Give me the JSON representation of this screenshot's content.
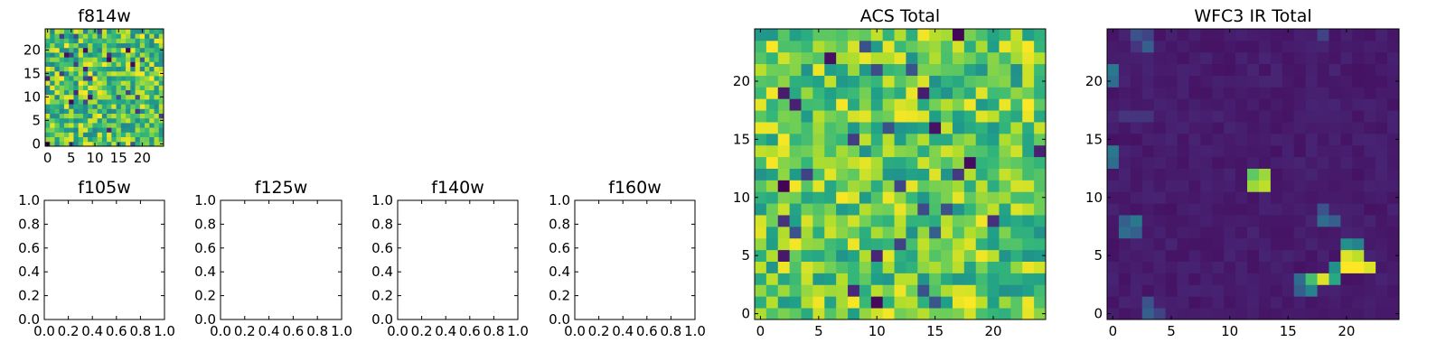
{
  "chart_data": [
    {
      "type": "heatmap",
      "title": "f814w",
      "grid_size": 25,
      "colormap": "viridis",
      "xticks": [
        "0",
        "5",
        "10",
        "15",
        "20"
      ],
      "yticks": [
        "0",
        "5",
        "10",
        "15",
        "20"
      ],
      "xlim": [
        -0.5,
        24.5
      ],
      "ylim": [
        -0.5,
        24.5
      ],
      "value_range": [
        0,
        1
      ],
      "values_note": "random noise field"
    },
    {
      "type": "empty",
      "title": "f105w",
      "xticks": [
        "0.0",
        "0.2",
        "0.4",
        "0.6",
        "0.8",
        "1.0"
      ],
      "yticks": [
        "0.0",
        "0.2",
        "0.4",
        "0.6",
        "0.8",
        "1.0"
      ],
      "xlim": [
        0,
        1
      ],
      "ylim": [
        0,
        1
      ]
    },
    {
      "type": "empty",
      "title": "f125w",
      "xticks": [
        "0.0",
        "0.2",
        "0.4",
        "0.6",
        "0.8",
        "1.0"
      ],
      "yticks": [
        "0.0",
        "0.2",
        "0.4",
        "0.6",
        "0.8",
        "1.0"
      ],
      "xlim": [
        0,
        1
      ],
      "ylim": [
        0,
        1
      ]
    },
    {
      "type": "empty",
      "title": "f140w",
      "xticks": [
        "0.0",
        "0.2",
        "0.4",
        "0.6",
        "0.8",
        "1.0"
      ],
      "yticks": [
        "0.0",
        "0.2",
        "0.4",
        "0.6",
        "0.8",
        "1.0"
      ],
      "xlim": [
        0,
        1
      ],
      "ylim": [
        0,
        1
      ]
    },
    {
      "type": "empty",
      "title": "f160w",
      "xticks": [
        "0.0",
        "0.2",
        "0.4",
        "0.6",
        "0.8",
        "1.0"
      ],
      "yticks": [
        "0.0",
        "0.2",
        "0.4",
        "0.6",
        "0.8",
        "1.0"
      ],
      "xlim": [
        0,
        1
      ],
      "ylim": [
        0,
        1
      ]
    },
    {
      "type": "heatmap",
      "title": "ACS Total",
      "grid_size": 25,
      "colormap": "viridis",
      "xticks": [
        "0",
        "5",
        "10",
        "15",
        "20"
      ],
      "yticks": [
        "0",
        "5",
        "10",
        "15",
        "20"
      ],
      "xlim": [
        -0.5,
        24.5
      ],
      "ylim": [
        -0.5,
        24.5
      ],
      "value_range": [
        0,
        1
      ],
      "values_note": "noise field, mostly green-yellow with scattered dark pixels"
    },
    {
      "type": "heatmap",
      "title": "WFC3 IR Total",
      "grid_size": 25,
      "colormap": "viridis",
      "xticks": [
        "0",
        "5",
        "10",
        "15",
        "20"
      ],
      "yticks": [
        "0",
        "5",
        "10",
        "15",
        "20"
      ],
      "xlim": [
        -0.5,
        24.5
      ],
      "ylim": [
        -0.5,
        24.5
      ],
      "value_range": [
        0,
        1
      ],
      "background_level": 0.05,
      "features": [
        {
          "x": 12,
          "y": 11,
          "value": 0.85
        },
        {
          "x": 13,
          "y": 11,
          "value": 0.9
        },
        {
          "x": 12,
          "y": 12,
          "value": 0.75
        },
        {
          "x": 13,
          "y": 12,
          "value": 0.85
        },
        {
          "x": 20,
          "y": 4,
          "value": 1.0
        },
        {
          "x": 21,
          "y": 4,
          "value": 1.0
        },
        {
          "x": 22,
          "y": 4,
          "value": 0.95
        },
        {
          "x": 20,
          "y": 5,
          "value": 0.95
        },
        {
          "x": 21,
          "y": 5,
          "value": 0.9
        },
        {
          "x": 20,
          "y": 6,
          "value": 0.5
        },
        {
          "x": 21,
          "y": 6,
          "value": 0.45
        },
        {
          "x": 18,
          "y": 3,
          "value": 0.95
        },
        {
          "x": 19,
          "y": 3,
          "value": 0.6
        },
        {
          "x": 17,
          "y": 3,
          "value": 0.7
        },
        {
          "x": 19,
          "y": 4,
          "value": 0.5
        },
        {
          "x": 17,
          "y": 2,
          "value": 0.45
        },
        {
          "x": 16,
          "y": 2,
          "value": 0.3
        },
        {
          "x": 16,
          "y": 3,
          "value": 0.35
        },
        {
          "x": 18,
          "y": 8,
          "value": 0.35
        },
        {
          "x": 19,
          "y": 8,
          "value": 0.3
        },
        {
          "x": 18,
          "y": 9,
          "value": 0.25
        },
        {
          "x": 2,
          "y": 7,
          "value": 0.3
        },
        {
          "x": 1,
          "y": 7,
          "value": 0.35
        },
        {
          "x": 1,
          "y": 8,
          "value": 0.3
        },
        {
          "x": 2,
          "y": 8,
          "value": 0.4
        },
        {
          "x": 0,
          "y": 13,
          "value": 0.35
        },
        {
          "x": 0,
          "y": 14,
          "value": 0.4
        },
        {
          "x": 0,
          "y": 20,
          "value": 0.35
        },
        {
          "x": 0,
          "y": 21,
          "value": 0.4
        },
        {
          "x": 2,
          "y": 24,
          "value": 0.25
        },
        {
          "x": 3,
          "y": 23,
          "value": 0.3
        },
        {
          "x": 3,
          "y": 24,
          "value": 0.2
        },
        {
          "x": 2,
          "y": 23,
          "value": 0.15
        },
        {
          "x": 3,
          "y": 0,
          "value": 0.3
        },
        {
          "x": 3,
          "y": 1,
          "value": 0.25
        },
        {
          "x": 4,
          "y": 0,
          "value": 0.2
        },
        {
          "x": 18,
          "y": 24,
          "value": 0.2
        },
        {
          "x": 1,
          "y": 17,
          "value": 0.15
        },
        {
          "x": 2,
          "y": 17,
          "value": 0.15
        },
        {
          "x": 3,
          "y": 17,
          "value": 0.15
        }
      ]
    }
  ]
}
